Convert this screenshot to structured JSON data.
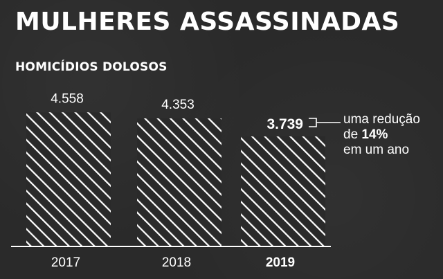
{
  "title": "MULHERES ASSASSINADAS",
  "subtitle": "HOMICÍDIOS DOLOSOS",
  "chart_data": {
    "type": "bar",
    "categories": [
      "2017",
      "2018",
      "2019"
    ],
    "values": [
      4558,
      4353,
      3739
    ],
    "value_labels": [
      "4.558",
      "4.353",
      "3.739"
    ],
    "highlight_index": 2,
    "ylim": [
      0,
      5000
    ],
    "grid": false,
    "bar_fill": "diagonal-hatch",
    "colors": {
      "background": "#2a2a2a",
      "bar": "#ffffff",
      "text": "#ffffff"
    }
  },
  "annotation": {
    "line1": "uma redução",
    "line2_prefix": "de ",
    "line2_bold": "14%",
    "line3": "em um ano"
  }
}
